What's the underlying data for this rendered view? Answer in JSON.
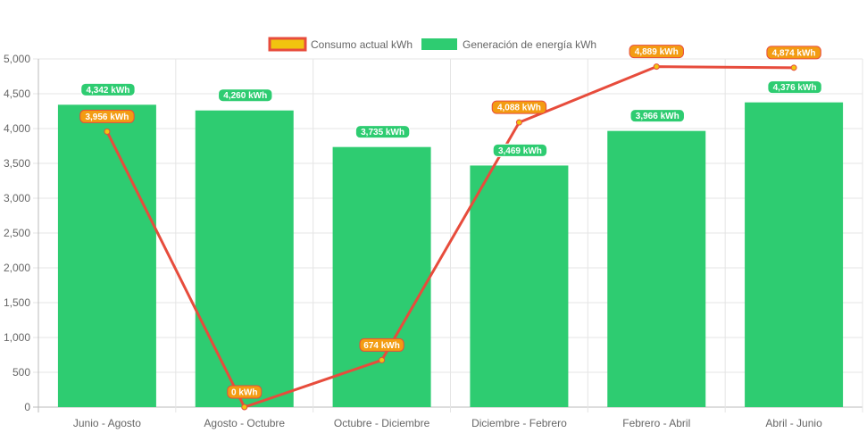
{
  "chart_data": {
    "type": "bar",
    "categories": [
      "Junio - Agosto",
      "Agosto - Octubre",
      "Octubre - Diciembre",
      "Diciembre - Febrero",
      "Febrero - Abril",
      "Abril - Junio"
    ],
    "series": [
      {
        "name": "Consumo actual kWh",
        "type": "line",
        "values": [
          3956,
          0,
          674,
          4088,
          4889,
          4874
        ],
        "labels": [
          "3,956 kWh",
          "0 kWh",
          "674 kWh",
          "4,088 kWh",
          "4,889 kWh",
          "4,874 kWh"
        ],
        "color": "#e74c3c",
        "fill_color": "#f1c40f",
        "label_bg": "#f39c12"
      },
      {
        "name": "Generación de energía kWh",
        "type": "bar",
        "values": [
          4342,
          4260,
          3735,
          3469,
          3966,
          4376
        ],
        "labels": [
          "4,342 kWh",
          "4,260 kWh",
          "3,735 kWh",
          "3,469 kWh",
          "3,966 kWh",
          "4,376 kWh"
        ],
        "color": "#2ecc71"
      }
    ],
    "y_ticks": [
      "0",
      "500",
      "1,000",
      "1,500",
      "2,000",
      "2,500",
      "3,000",
      "3,500",
      "4,000",
      "4,500",
      "5,000"
    ],
    "ylim": [
      0,
      5000
    ],
    "grid": true,
    "legend_position": "top"
  }
}
